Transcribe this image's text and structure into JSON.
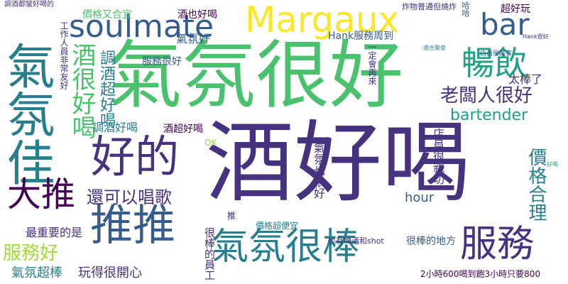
{
  "word_cloud": {
    "words": [
      "酒好喝",
      "氣氛很好",
      "氣氛佳",
      "Margaux",
      "soulmate",
      "好的",
      "推推",
      "大推",
      "服務",
      "氣氛很棒",
      "bar",
      "暢飲",
      "酒很好喝",
      "老闆人很好",
      "調酒超好喝",
      "bartender",
      "還可以唱歌",
      "服務好",
      "最重要的是",
      "氣氛超棒",
      "玩得很開心",
      "很棒的員工",
      "價格合理",
      "太棒了",
      "超好玩",
      "氣氛好",
      "服務很好",
      "酒也好喝",
      "價格又合宜",
      "工作人員非常友好",
      "調酒好喝",
      "酒超好喝",
      "Hank服務周到",
      "店員很親切",
      "hour",
      "氣氛也很好",
      "一定會再來",
      "也有啤酒和shot",
      "很棒的地方",
      "價格超便宜",
      "2小時600喝到飽3小時只要800",
      "OK",
      "推",
      "炸物普通但燒炸",
      "哈哈",
      "調酒都蠻好喝的",
      "店員很厲害",
      "Hank很好",
      "適合聚會",
      "好喝"
    ]
  }
}
